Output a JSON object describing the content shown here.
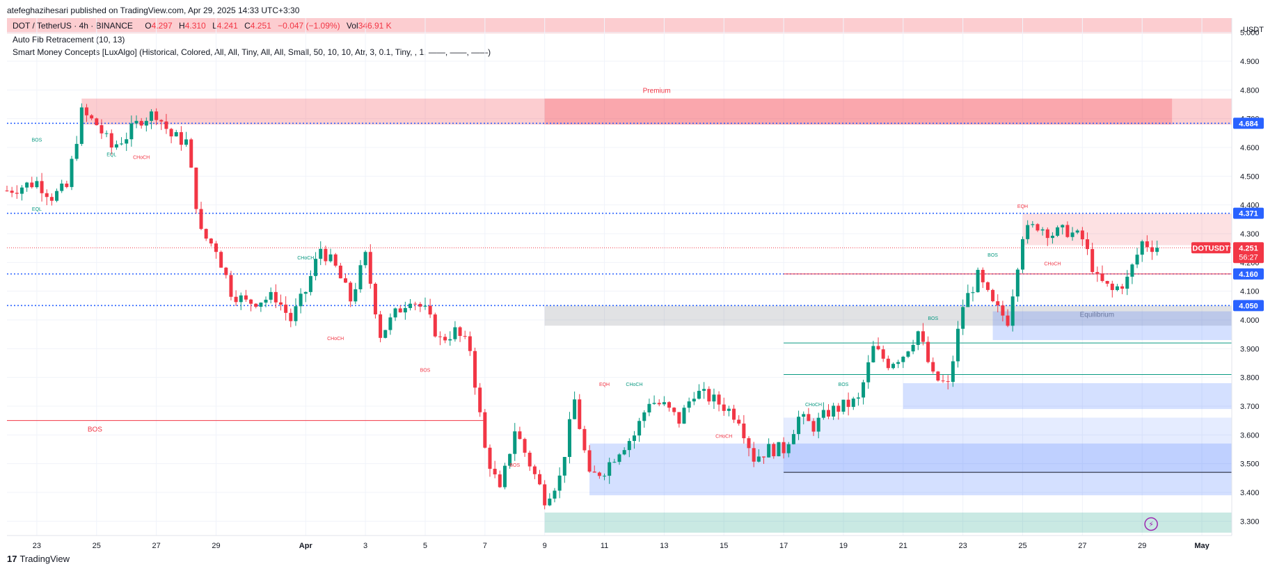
{
  "header": {
    "published": "atefeghazihesari published on TradingView.com, Apr 29, 2025 14:33 UTC+3:30"
  },
  "legend": {
    "symbol": "DOT / TetherUS · 4h · BINANCE",
    "o_label": "O",
    "o": "4.297",
    "h_label": "H",
    "h": "4.310",
    "l_label": "L",
    "l": "4.241",
    "c_label": "C",
    "c": "4.251",
    "change": "−0.047 (−1.09%)",
    "vol_label": "Vol",
    "vol": "346.91 K",
    "indicator1": "Auto Fib Retracement (10, 13)",
    "indicator2": "Smart Money Concepts [LuxAlgo] (Historical, Colored, All, All, Tiny, All, All, Small, 50, 10, 10, Atr, 3, 0.1, Tiny, , 1, ——, ——, ——)"
  },
  "footer": {
    "brand": "TradingView"
  },
  "colors": {
    "up": "#089981",
    "down": "#f23645",
    "fib_blue": "#2962ff",
    "premium": "#f23645",
    "discount": "#089981",
    "equilibrium": "#787b86",
    "ob_blue": "#2962ff"
  },
  "chart_data": {
    "type": "candlestick",
    "symbol": "DOTUSDT",
    "timeframe": "4h",
    "currency": "USDT",
    "ylim": [
      3.25,
      5.05
    ],
    "x_start": "2025-03-22",
    "x_end": "2025-05-02",
    "x_ticks": [
      {
        "date": "2025-03-23",
        "label": "23"
      },
      {
        "date": "2025-03-25",
        "label": "25"
      },
      {
        "date": "2025-03-27",
        "label": "27"
      },
      {
        "date": "2025-03-29",
        "label": "29"
      },
      {
        "date": "2025-04-01",
        "label": "Apr"
      },
      {
        "date": "2025-04-03",
        "label": "3"
      },
      {
        "date": "2025-04-05",
        "label": "5"
      },
      {
        "date": "2025-04-07",
        "label": "7"
      },
      {
        "date": "2025-04-09",
        "label": "9"
      },
      {
        "date": "2025-04-11",
        "label": "11"
      },
      {
        "date": "2025-04-13",
        "label": "13"
      },
      {
        "date": "2025-04-15",
        "label": "15"
      },
      {
        "date": "2025-04-17",
        "label": "17"
      },
      {
        "date": "2025-04-19",
        "label": "19"
      },
      {
        "date": "2025-04-21",
        "label": "21"
      },
      {
        "date": "2025-04-23",
        "label": "23"
      },
      {
        "date": "2025-04-25",
        "label": "25"
      },
      {
        "date": "2025-04-27",
        "label": "27"
      },
      {
        "date": "2025-04-29",
        "label": "29"
      },
      {
        "date": "2025-05-01",
        "label": "May"
      }
    ],
    "y_ticks": [
      "3.300",
      "3.400",
      "3.500",
      "3.600",
      "3.700",
      "3.800",
      "3.900",
      "4.000",
      "4.100",
      "4.200",
      "4.300",
      "4.400",
      "4.500",
      "4.600",
      "4.700",
      "4.800",
      "4.900",
      "5.000"
    ],
    "price_labels": [
      {
        "value": 4.684,
        "text": "4.684",
        "color": "#2962ff"
      },
      {
        "value": 4.371,
        "text": "4.371",
        "color": "#2962ff"
      },
      {
        "value": 4.251,
        "text": "4.251",
        "color": "#f23645",
        "tag": "DOTUSDT",
        "countdown": "56:27"
      },
      {
        "value": 4.16,
        "text": "4.160",
        "color": "#2962ff"
      },
      {
        "value": 4.05,
        "text": "4.050",
        "color": "#2962ff"
      }
    ],
    "fib_levels": [
      {
        "value": 4.684,
        "from": "2025-03-22"
      },
      {
        "value": 4.371,
        "from": "2025-03-22"
      },
      {
        "value": 4.16,
        "from": "2025-03-22"
      },
      {
        "value": 4.05,
        "from": "2025-03-22"
      }
    ],
    "zones": [
      {
        "label": "Premium",
        "from": "2025-03-24T12:00",
        "to": "2025-05-02",
        "top": 4.77,
        "bottom": 4.68,
        "color": "#f23645",
        "opacity": 0.25
      },
      {
        "label": "",
        "from": "2025-04-09",
        "to": "2025-04-30",
        "top": 4.77,
        "bottom": 4.68,
        "color": "#f23645",
        "opacity": 0.25
      },
      {
        "label": "Equilibrium",
        "from": "2025-04-09",
        "to": "2025-05-02",
        "top": 4.05,
        "bottom": 3.98,
        "color": "#787b86",
        "opacity": 0.22
      },
      {
        "label": "",
        "from": "2025-04-09",
        "to": "2025-05-02",
        "top": 3.33,
        "bottom": 3.26,
        "color": "#089981",
        "opacity": 0.22
      },
      {
        "label": "",
        "from": "2025-04-25",
        "to": "2025-05-02",
        "top": 4.37,
        "bottom": 4.26,
        "color": "#f23645",
        "opacity": 0.15
      },
      {
        "label": "",
        "from": "2025-04-10T12:00",
        "to": "2025-05-02",
        "top": 3.57,
        "bottom": 3.39,
        "color": "#2962ff",
        "opacity": 0.2
      },
      {
        "label": "",
        "from": "2025-04-17",
        "to": "2025-05-02",
        "top": 3.66,
        "bottom": 3.47,
        "color": "#2962ff",
        "opacity": 0.12
      },
      {
        "label": "",
        "from": "2025-04-21",
        "to": "2025-05-02",
        "top": 3.78,
        "bottom": 3.69,
        "color": "#2962ff",
        "opacity": 0.2
      },
      {
        "label": "",
        "from": "2025-04-24",
        "to": "2025-05-02",
        "top": 4.03,
        "bottom": 3.93,
        "color": "#2962ff",
        "opacity": 0.2
      }
    ],
    "hlines": [
      {
        "value": 3.65,
        "from": "2025-03-22",
        "to": "2025-04-07",
        "color": "#f23645",
        "label": "BOS",
        "label_date": "2025-03-24"
      },
      {
        "value": 4.16,
        "from": "2025-04-17",
        "to": "2025-05-02",
        "color": "#f23645"
      },
      {
        "value": 3.92,
        "from": "2025-04-17",
        "to": "2025-05-02",
        "color": "#089981"
      },
      {
        "value": 3.81,
        "from": "2025-04-17",
        "to": "2025-05-02",
        "color": "#089981"
      },
      {
        "value": 3.47,
        "from": "2025-04-17",
        "to": "2025-05-02",
        "color": "#131722"
      }
    ],
    "struct_labels": [
      {
        "text": "BOS",
        "date": "2025-03-23",
        "value": 4.62,
        "color": "#089981"
      },
      {
        "text": "EQL",
        "date": "2025-03-25T12:00",
        "value": 4.57,
        "color": "#089981"
      },
      {
        "text": "CHoCH",
        "date": "2025-03-26T12:00",
        "value": 4.56,
        "color": "#f23645"
      },
      {
        "text": "EQL",
        "date": "2025-03-23",
        "value": 4.38,
        "color": "#089981"
      },
      {
        "text": "CHoCH",
        "date": "2025-04-01",
        "value": 4.21,
        "color": "#089981"
      },
      {
        "text": "CHoCH",
        "date": "2025-04-02",
        "value": 3.93,
        "color": "#f23645"
      },
      {
        "text": "BOS",
        "date": "2025-04-05",
        "value": 3.82,
        "color": "#f23645"
      },
      {
        "text": "BOS",
        "date": "2025-04-08",
        "value": 3.49,
        "color": "#f23645"
      },
      {
        "text": "EQH",
        "date": "2025-04-11",
        "value": 3.77,
        "color": "#f23645"
      },
      {
        "text": "CHoCH",
        "date": "2025-04-12",
        "value": 3.77,
        "color": "#089981"
      },
      {
        "text": "CHoCH",
        "date": "2025-04-15",
        "value": 3.59,
        "color": "#f23645"
      },
      {
        "text": "CHoCH",
        "date": "2025-04-18",
        "value": 3.7,
        "color": "#089981"
      },
      {
        "text": "BOS",
        "date": "2025-04-19",
        "value": 3.77,
        "color": "#089981"
      },
      {
        "text": "BOS",
        "date": "2025-04-22",
        "value": 4.0,
        "color": "#089981"
      },
      {
        "text": "BOS",
        "date": "2025-04-24",
        "value": 4.22,
        "color": "#089981"
      },
      {
        "text": "EQH",
        "date": "2025-04-25",
        "value": 4.39,
        "color": "#f23645"
      },
      {
        "text": "CHoCH",
        "date": "2025-04-26",
        "value": 4.19,
        "color": "#f23645"
      }
    ],
    "anchors": [
      {
        "date": "2025-03-22",
        "price": 4.45
      },
      {
        "date": "2025-03-23",
        "price": 4.48
      },
      {
        "date": "2025-03-23T12:00",
        "price": 4.43
      },
      {
        "date": "2025-03-24",
        "price": 4.46
      },
      {
        "date": "2025-03-24T12:00",
        "price": 4.72
      },
      {
        "date": "2025-03-25",
        "price": 4.68
      },
      {
        "date": "2025-03-25T12:00",
        "price": 4.6
      },
      {
        "date": "2025-03-26",
        "price": 4.64
      },
      {
        "date": "2025-03-26T12:00",
        "price": 4.7
      },
      {
        "date": "2025-03-27",
        "price": 4.72
      },
      {
        "date": "2025-03-27T12:00",
        "price": 4.64
      },
      {
        "date": "2025-03-28",
        "price": 4.62
      },
      {
        "date": "2025-03-28T12:00",
        "price": 4.3
      },
      {
        "date": "2025-03-29",
        "price": 4.25
      },
      {
        "date": "2025-03-29T12:00",
        "price": 4.1
      },
      {
        "date": "2025-03-30",
        "price": 4.06
      },
      {
        "date": "2025-03-31",
        "price": 4.08
      },
      {
        "date": "2025-03-31T12:00",
        "price": 4.0
      },
      {
        "date": "2025-04-01",
        "price": 4.1
      },
      {
        "date": "2025-04-01T12:00",
        "price": 4.25
      },
      {
        "date": "2025-04-02",
        "price": 4.18
      },
      {
        "date": "2025-04-02T12:00",
        "price": 4.07
      },
      {
        "date": "2025-04-03",
        "price": 4.22
      },
      {
        "date": "2025-04-03T12:00",
        "price": 3.95
      },
      {
        "date": "2025-04-04",
        "price": 4.02
      },
      {
        "date": "2025-04-04T12:00",
        "price": 4.08
      },
      {
        "date": "2025-04-05",
        "price": 4.03
      },
      {
        "date": "2025-04-05T12:00",
        "price": 3.93
      },
      {
        "date": "2025-04-06",
        "price": 3.96
      },
      {
        "date": "2025-04-06T12:00",
        "price": 3.9
      },
      {
        "date": "2025-04-07",
        "price": 3.55
      },
      {
        "date": "2025-04-07T12:00",
        "price": 3.4
      },
      {
        "date": "2025-04-08",
        "price": 3.62
      },
      {
        "date": "2025-04-08T12:00",
        "price": 3.5
      },
      {
        "date": "2025-04-09",
        "price": 3.38
      },
      {
        "date": "2025-04-09T12:00",
        "price": 3.45
      },
      {
        "date": "2025-04-10",
        "price": 3.72
      },
      {
        "date": "2025-04-10T12:00",
        "price": 3.45
      },
      {
        "date": "2025-04-11",
        "price": 3.48
      },
      {
        "date": "2025-04-11T12:00",
        "price": 3.55
      },
      {
        "date": "2025-04-12",
        "price": 3.6
      },
      {
        "date": "2025-04-12T12:00",
        "price": 3.72
      },
      {
        "date": "2025-04-13",
        "price": 3.7
      },
      {
        "date": "2025-04-13T12:00",
        "price": 3.65
      },
      {
        "date": "2025-04-14",
        "price": 3.75
      },
      {
        "date": "2025-04-14T12:00",
        "price": 3.73
      },
      {
        "date": "2025-04-15",
        "price": 3.7
      },
      {
        "date": "2025-04-15T12:00",
        "price": 3.66
      },
      {
        "date": "2025-04-16",
        "price": 3.52
      },
      {
        "date": "2025-04-16T12:00",
        "price": 3.55
      },
      {
        "date": "2025-04-17",
        "price": 3.55
      },
      {
        "date": "2025-04-17T12:00",
        "price": 3.66
      },
      {
        "date": "2025-04-18",
        "price": 3.63
      },
      {
        "date": "2025-04-18T12:00",
        "price": 3.68
      },
      {
        "date": "2025-04-19",
        "price": 3.7
      },
      {
        "date": "2025-04-19T12:00",
        "price": 3.72
      },
      {
        "date": "2025-04-20",
        "price": 3.9
      },
      {
        "date": "2025-04-20T12:00",
        "price": 3.85
      },
      {
        "date": "2025-04-21",
        "price": 3.88
      },
      {
        "date": "2025-04-21T12:00",
        "price": 3.96
      },
      {
        "date": "2025-04-22",
        "price": 3.8
      },
      {
        "date": "2025-04-22T12:00",
        "price": 3.77
      },
      {
        "date": "2025-04-23",
        "price": 4.05
      },
      {
        "date": "2025-04-23T12:00",
        "price": 4.15
      },
      {
        "date": "2025-04-24",
        "price": 4.05
      },
      {
        "date": "2025-04-24T12:00",
        "price": 4.0
      },
      {
        "date": "2025-04-25",
        "price": 4.3
      },
      {
        "date": "2025-04-25T12:00",
        "price": 4.33
      },
      {
        "date": "2025-04-26",
        "price": 4.3
      },
      {
        "date": "2025-04-26T12:00",
        "price": 4.31
      },
      {
        "date": "2025-04-27",
        "price": 4.28
      },
      {
        "date": "2025-04-27T12:00",
        "price": 4.14
      },
      {
        "date": "2025-04-28",
        "price": 4.1
      },
      {
        "date": "2025-04-28T12:00",
        "price": 4.14
      },
      {
        "date": "2025-04-29",
        "price": 4.27
      },
      {
        "date": "2025-04-29T12:00",
        "price": 4.25
      }
    ]
  }
}
